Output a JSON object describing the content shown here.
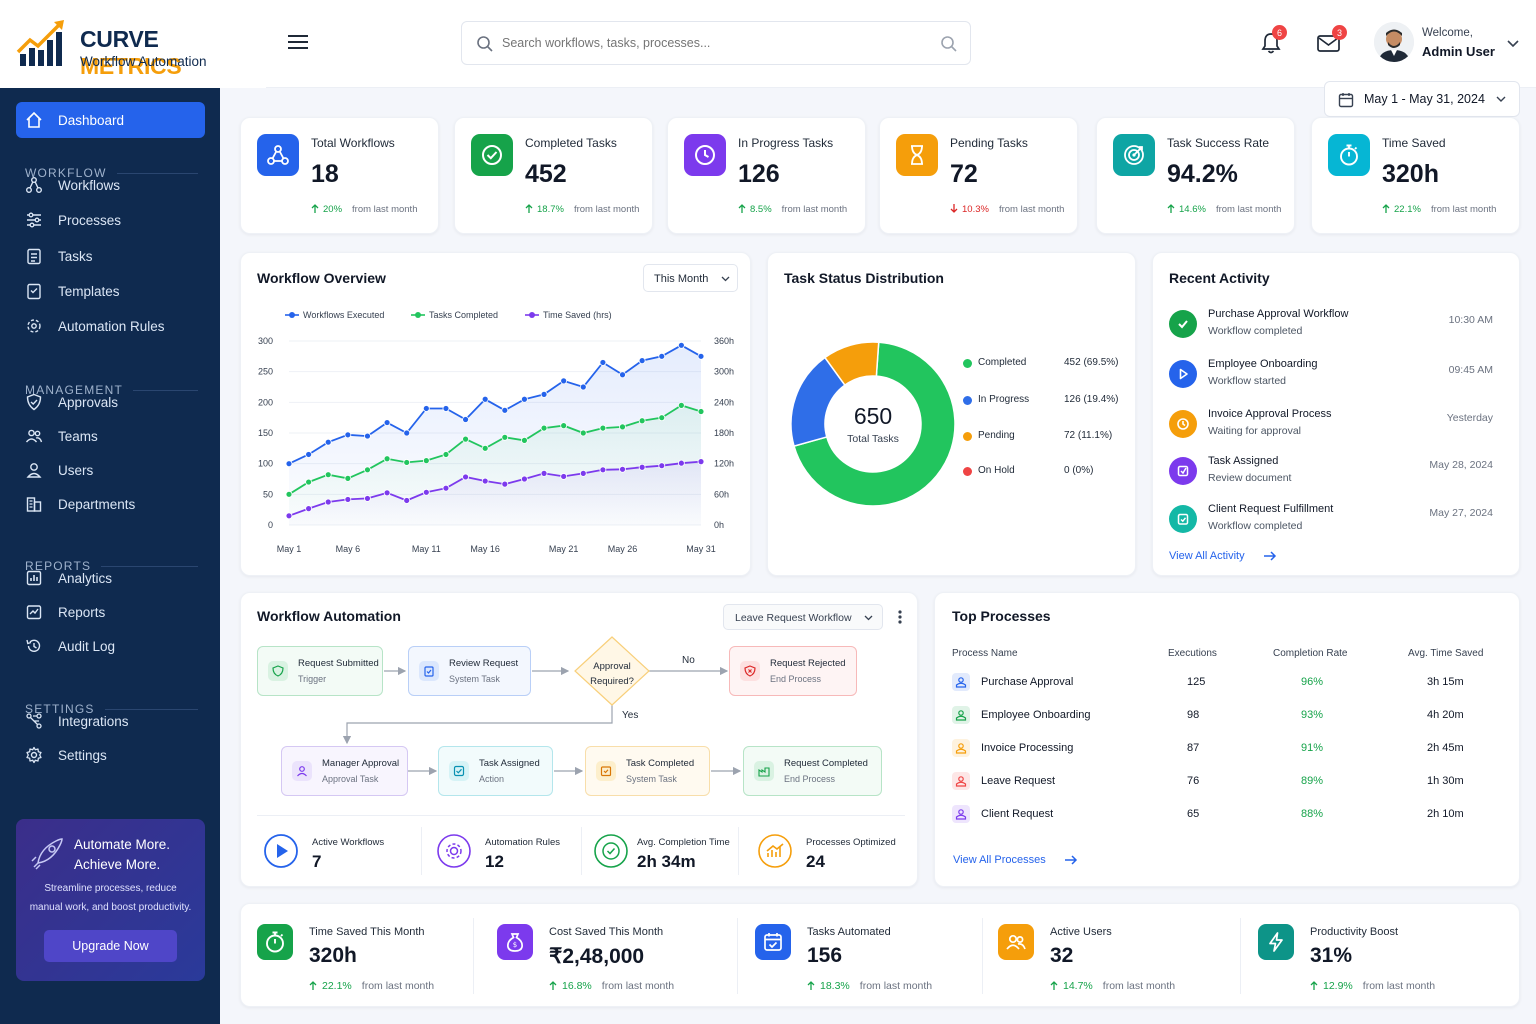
{
  "brand": {
    "name_part1": "CURVE",
    "name_part2": "METRICS",
    "tagline": "Workflow Automation",
    "colors": {
      "navy": "#0f2a4f",
      "orange": "#f59e0b"
    }
  },
  "header": {
    "search_placeholder": "Search workflows, tasks, processes...",
    "notifications_count": "6",
    "messages_count": "3",
    "welcome": "Welcome,",
    "user_name": "Admin User",
    "date_range": "May 1 - May 31, 2024"
  },
  "sidebar": {
    "dashboard": "Dashboard",
    "sections": [
      {
        "title": "WORKFLOW",
        "items": [
          "Workflows",
          "Processes",
          "Tasks",
          "Templates",
          "Automation Rules"
        ]
      },
      {
        "title": "MANAGEMENT",
        "items": [
          "Approvals",
          "Teams",
          "Users",
          "Departments"
        ]
      },
      {
        "title": "REPORTS",
        "items": [
          "Analytics",
          "Reports",
          "Audit Log"
        ]
      },
      {
        "title": "SETTINGS",
        "items": [
          "Integrations",
          "Settings"
        ]
      }
    ],
    "promo": {
      "title1": "Automate More.",
      "title2": "Achieve More.",
      "text1": "Streamline processes, reduce",
      "text2": "manual work, and boost productivity.",
      "button": "Upgrade Now"
    }
  },
  "kpis": [
    {
      "label": "Total Workflows",
      "value": "18",
      "change": "20%",
      "dir": "up",
      "suffix": "from last month",
      "color": "#2563eb",
      "icon": "workflow-icon"
    },
    {
      "label": "Completed Tasks",
      "value": "452",
      "change": "18.7%",
      "dir": "up",
      "suffix": "from last month",
      "color": "#16a34a",
      "icon": "check-circle-icon"
    },
    {
      "label": "In Progress Tasks",
      "value": "126",
      "change": "8.5%",
      "dir": "up",
      "suffix": "from last month",
      "color": "#7c3aed",
      "icon": "clock-icon"
    },
    {
      "label": "Pending Tasks",
      "value": "72",
      "change": "10.3%",
      "dir": "down",
      "suffix": "from last month",
      "color": "#f59e0b",
      "icon": "hourglass-icon"
    },
    {
      "label": "Task Success Rate",
      "value": "94.2%",
      "change": "14.6%",
      "dir": "up",
      "suffix": "from last month",
      "color": "#0ea5a4",
      "icon": "target-icon"
    },
    {
      "label": "Time Saved",
      "value": "320h",
      "change": "22.1%",
      "dir": "up",
      "suffix": "from last month",
      "color": "#06b6d4",
      "icon": "stopwatch-icon"
    }
  ],
  "overview": {
    "title": "Workflow Overview",
    "period": "This Month",
    "chart_data": {
      "type": "line",
      "x": [
        "May 1",
        "May 3",
        "May 5",
        "May 6",
        "May 8",
        "May 9",
        "May 10",
        "May 11",
        "May 13",
        "May 14",
        "May 16",
        "May 17",
        "May 19",
        "May 20",
        "May 21",
        "May 23",
        "May 24",
        "May 26",
        "May 27",
        "May 29",
        "May 30",
        "May 31"
      ],
      "xticks": [
        "May 1",
        "May 6",
        "May 11",
        "May 16",
        "May 21",
        "May 26",
        "May 31"
      ],
      "series": [
        {
          "name": "Workflows Executed",
          "axis": "left",
          "color": "#2563eb",
          "values": [
            100,
            115,
            135,
            147,
            145,
            167,
            150,
            190,
            190,
            172,
            205,
            187,
            205,
            213,
            235,
            225,
            265,
            245,
            268,
            275,
            293,
            275
          ]
        },
        {
          "name": "Tasks Completed",
          "axis": "left",
          "color": "#22c55e",
          "values": [
            50,
            70,
            82,
            76,
            90,
            108,
            102,
            105,
            115,
            140,
            125,
            143,
            138,
            158,
            162,
            150,
            158,
            160,
            170,
            175,
            195,
            185
          ]
        },
        {
          "name": "Time Saved (hrs)",
          "axis": "right",
          "color": "#7c3aed",
          "values": [
            18,
            32,
            45,
            50,
            52,
            63,
            48,
            64,
            72,
            94,
            86,
            80,
            90,
            101,
            95,
            101,
            108,
            109,
            113,
            116,
            121,
            124
          ]
        }
      ],
      "y_left": {
        "range": [
          0,
          300
        ],
        "ticks": [
          "300",
          "250",
          "200",
          "150",
          "100",
          "50",
          "0"
        ]
      },
      "y_right": {
        "range": [
          0,
          360
        ],
        "ticks": [
          "360h",
          "300h",
          "240h",
          "180h",
          "120h",
          "60h",
          "0h"
        ]
      },
      "legend": "top"
    }
  },
  "distribution": {
    "title": "Task Status Distribution",
    "total": "650",
    "total_label": "Total Tasks",
    "chart_data": {
      "type": "pie",
      "labels": [
        "Completed",
        "In Progress",
        "Pending",
        "On Hold"
      ],
      "values": [
        452,
        126,
        72,
        0
      ],
      "display": [
        "452 (69.5%)",
        "126 (19.4%)",
        "72 (11.1%)",
        "0 (0%)"
      ],
      "colors": [
        "#22c55e",
        "#2f6ee8",
        "#f59e0b",
        "#ef4444"
      ]
    }
  },
  "activity": {
    "title": "Recent Activity",
    "view_all": "View All Activity",
    "items": [
      {
        "title": "Purchase Approval Workflow",
        "status": "Workflow completed",
        "time": "10:30 AM",
        "color": "#16a34a"
      },
      {
        "title": "Employee Onboarding",
        "status": "Workflow started",
        "time": "09:45 AM",
        "color": "#2563eb"
      },
      {
        "title": "Invoice Approval Process",
        "status": "Waiting for approval",
        "time": "Yesterday",
        "color": "#f59e0b"
      },
      {
        "title": "Task Assigned",
        "status": "Review document",
        "time": "May 28, 2024",
        "color": "#7c3aed"
      },
      {
        "title": "Client Request Fulfillment",
        "status": "Workflow completed",
        "time": "May 27, 2024",
        "color": "#14b8a6"
      }
    ]
  },
  "automation": {
    "title": "Workflow Automation",
    "selector": "Leave Request Workflow",
    "nodes": {
      "submitted": {
        "t": "Request Submitted",
        "s": "Trigger"
      },
      "review": {
        "t": "Review Request",
        "s": "System Task"
      },
      "decision": {
        "t1": "Approval",
        "t2": "Required?"
      },
      "rejected": {
        "t": "Request Rejected",
        "s": "End Process"
      },
      "manager": {
        "t": "Manager Approval",
        "s": "Approval Task"
      },
      "assigned": {
        "t": "Task Assigned",
        "s": "Action"
      },
      "completed": {
        "t": "Task Completed",
        "s": "System Task"
      },
      "reqcompleted": {
        "t": "Request Completed",
        "s": "End Process"
      }
    },
    "no_label": "No",
    "yes_label": "Yes",
    "stats": [
      {
        "label": "Active Workflows",
        "value": "7"
      },
      {
        "label": "Automation Rules",
        "value": "12"
      },
      {
        "label": "Avg. Completion Time",
        "value": "2h 34m"
      },
      {
        "label": "Processes Optimized",
        "value": "24"
      }
    ]
  },
  "top_processes": {
    "title": "Top Processes",
    "columns": [
      "Process Name",
      "Executions",
      "Completion Rate",
      "Avg. Time Saved"
    ],
    "rows": [
      {
        "name": "Purchase Approval",
        "exec": "125",
        "rate": "96%",
        "saved": "3h 15m",
        "color": "#2563eb"
      },
      {
        "name": "Employee Onboarding",
        "exec": "98",
        "rate": "93%",
        "saved": "4h 20m",
        "color": "#16a34a"
      },
      {
        "name": "Invoice Processing",
        "exec": "87",
        "rate": "91%",
        "saved": "2h 45m",
        "color": "#f59e0b"
      },
      {
        "name": "Leave Request",
        "exec": "76",
        "rate": "89%",
        "saved": "1h 30m",
        "color": "#ef4444"
      },
      {
        "name": "Client Request",
        "exec": "65",
        "rate": "88%",
        "saved": "2h 10m",
        "color": "#7c3aed"
      }
    ],
    "view_all": "View All Processes"
  },
  "bottom_stats": [
    {
      "label": "Time Saved This Month",
      "value": "320h",
      "change": "22.1%",
      "suffix": "from last month",
      "color": "#16a34a",
      "icon": "stopwatch-icon"
    },
    {
      "label": "Cost Saved This Month",
      "value": "₹2,48,000",
      "change": "16.8%",
      "suffix": "from last month",
      "color": "#7c3aed",
      "icon": "money-bag-icon"
    },
    {
      "label": "Tasks Automated",
      "value": "156",
      "change": "18.3%",
      "suffix": "from last month",
      "color": "#2563eb",
      "icon": "calendar-check-icon"
    },
    {
      "label": "Active Users",
      "value": "32",
      "change": "14.7%",
      "suffix": "from last month",
      "color": "#f59e0b",
      "icon": "users-icon"
    },
    {
      "label": "Productivity Boost",
      "value": "31%",
      "change": "12.9%",
      "suffix": "from last month",
      "color": "#0d9488",
      "icon": "bolt-icon"
    }
  ]
}
